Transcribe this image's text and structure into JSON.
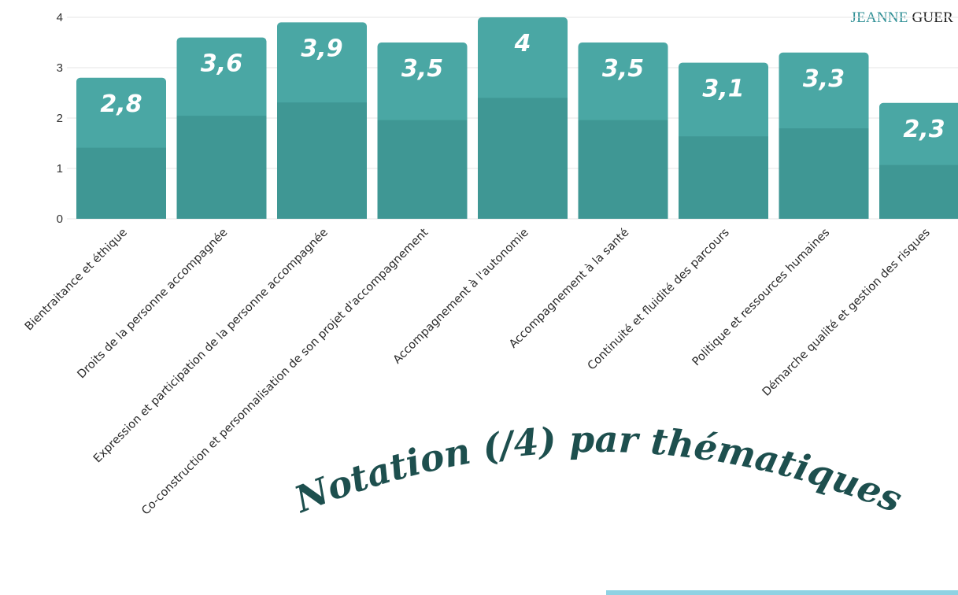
{
  "brand": {
    "part1": "JEANNE",
    "part2": "GUER"
  },
  "chart_data": {
    "type": "bar",
    "title": "Notation (/4) par thématiques",
    "categories": [
      "Bientraitance et éthique",
      "Droits de la personne accompagnée",
      "Expression et participation de la personne accompagnée",
      "Co-construction et personnalisation de son projet d'accompagnement",
      "Accompagnement à l'autonomie",
      "Accompagnement à la santé",
      "Continuité et fluidité des parcours",
      "Politique et ressources humaines",
      "Démarche qualité et gestion des risques"
    ],
    "values": [
      2.8,
      3.6,
      3.9,
      3.5,
      4,
      3.5,
      3.1,
      3.3,
      2.3
    ],
    "value_labels": [
      "2,8",
      "3,6",
      "3,9",
      "3,5",
      "4",
      "3,5",
      "3,1",
      "3,3",
      "2,3"
    ],
    "y_ticks": [
      "0",
      "1",
      "2",
      "3",
      "4"
    ],
    "ylim": [
      0,
      4
    ],
    "grid": true,
    "colors": {
      "bar": "#4aa7a4",
      "bar_shadow": "#3f9794",
      "label": "#ffffff",
      "title": "#1d4f4e"
    }
  }
}
